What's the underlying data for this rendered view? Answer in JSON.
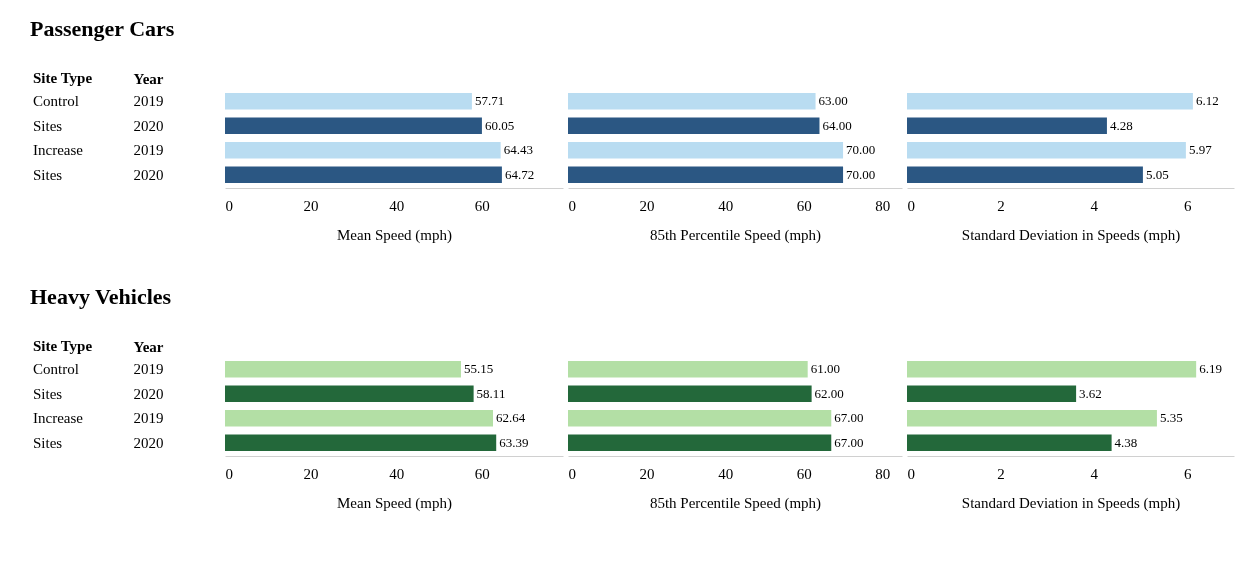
{
  "chart_data": [
    {
      "type": "bar",
      "orientation": "horizontal",
      "title": "Passenger Cars",
      "ylabel": "Year",
      "annotations": [
        "Site Type",
        "Control Sites",
        "Increase Sites"
      ],
      "categories": [
        "2019",
        "2020",
        "2019",
        "2020"
      ],
      "values": [
        57.71,
        60.05,
        64.43,
        64.72
      ],
      "value_labels": [
        "57.71",
        "60.05",
        "64.43",
        "64.72"
      ],
      "colors": [
        "#b9dcf1",
        "#2b5783",
        "#b9dcf1",
        "#2b5783"
      ],
      "xlim": [
        0,
        79
      ],
      "xticks": [
        0,
        20,
        40,
        60
      ],
      "xlabel": "Mean Speed (mph)"
    },
    {
      "type": "bar",
      "orientation": "horizontal",
      "tick_labels": "x",
      "categories": [
        "2019",
        "2020",
        "2019",
        "2020"
      ],
      "values": [
        63,
        64,
        70,
        70
      ],
      "value_labels": [
        "63.00",
        "64.00",
        "70.00",
        "70.00"
      ],
      "colors": [
        "#b9dcf1",
        "#2b5783",
        "#b9dcf1",
        "#2b5783"
      ],
      "xlim": [
        0,
        85
      ],
      "xticks": [
        0,
        20,
        40,
        60,
        80
      ],
      "xlabel": "85th Percentile Speed (mph)"
    },
    {
      "type": "bar",
      "orientation": "horizontal",
      "tick_labels": "x",
      "categories": [
        "2019",
        "2020",
        "2019",
        "2020"
      ],
      "values": [
        6.12,
        4.28,
        5.97,
        5.05
      ],
      "value_labels": [
        "6.12",
        "4.28",
        "5.97",
        "5.05"
      ],
      "colors": [
        "#b9dcf1",
        "#2b5783",
        "#b9dcf1",
        "#2b5783"
      ],
      "xlim": [
        0,
        7
      ],
      "xticks": [
        0,
        2,
        4,
        6
      ],
      "xlabel": "Standard Deviation in Speeds (mph)"
    },
    {
      "type": "bar",
      "orientation": "horizontal",
      "title": "Heavy Vehicles",
      "ylabel": "Year",
      "annotations": [
        "Site Type",
        "Control Sites",
        "Increase Sites"
      ],
      "categories": [
        "2019",
        "2020",
        "2019",
        "2020"
      ],
      "values": [
        55.15,
        58.11,
        62.64,
        63.39
      ],
      "value_labels": [
        "55.15",
        "58.11",
        "62.64",
        "63.39"
      ],
      "colors": [
        "#b3dfa5",
        "#23683a",
        "#b3dfa5",
        "#23683a"
      ],
      "xlim": [
        0,
        79
      ],
      "xticks": [
        0,
        20,
        40,
        60
      ],
      "xlabel": "Mean Speed (mph)"
    },
    {
      "type": "bar",
      "orientation": "horizontal",
      "tick_labels": "x",
      "categories": [
        "2019",
        "2020",
        "2019",
        "2020"
      ],
      "values": [
        61,
        62,
        67,
        67
      ],
      "value_labels": [
        "61.00",
        "62.00",
        "67.00",
        "67.00"
      ],
      "colors": [
        "#b3dfa5",
        "#23683a",
        "#b3dfa5",
        "#23683a"
      ],
      "xlim": [
        0,
        85
      ],
      "xticks": [
        0,
        20,
        40,
        60,
        80
      ],
      "xlabel": "85th Percentile Speed (mph)"
    },
    {
      "type": "bar",
      "orientation": "horizontal",
      "tick_labels": "x",
      "categories": [
        "2019",
        "2020",
        "2019",
        "2020"
      ],
      "values": [
        6.19,
        3.62,
        5.35,
        4.38
      ],
      "value_labels": [
        "6.19",
        "3.62",
        "5.35",
        "4.38"
      ],
      "colors": [
        "#b3dfa5",
        "#23683a",
        "#b3dfa5",
        "#23683a"
      ],
      "xlim": [
        0,
        7
      ],
      "xticks": [
        0,
        2,
        4,
        6
      ],
      "xlabel": "Standard Deviation in Speeds (mph)"
    }
  ]
}
